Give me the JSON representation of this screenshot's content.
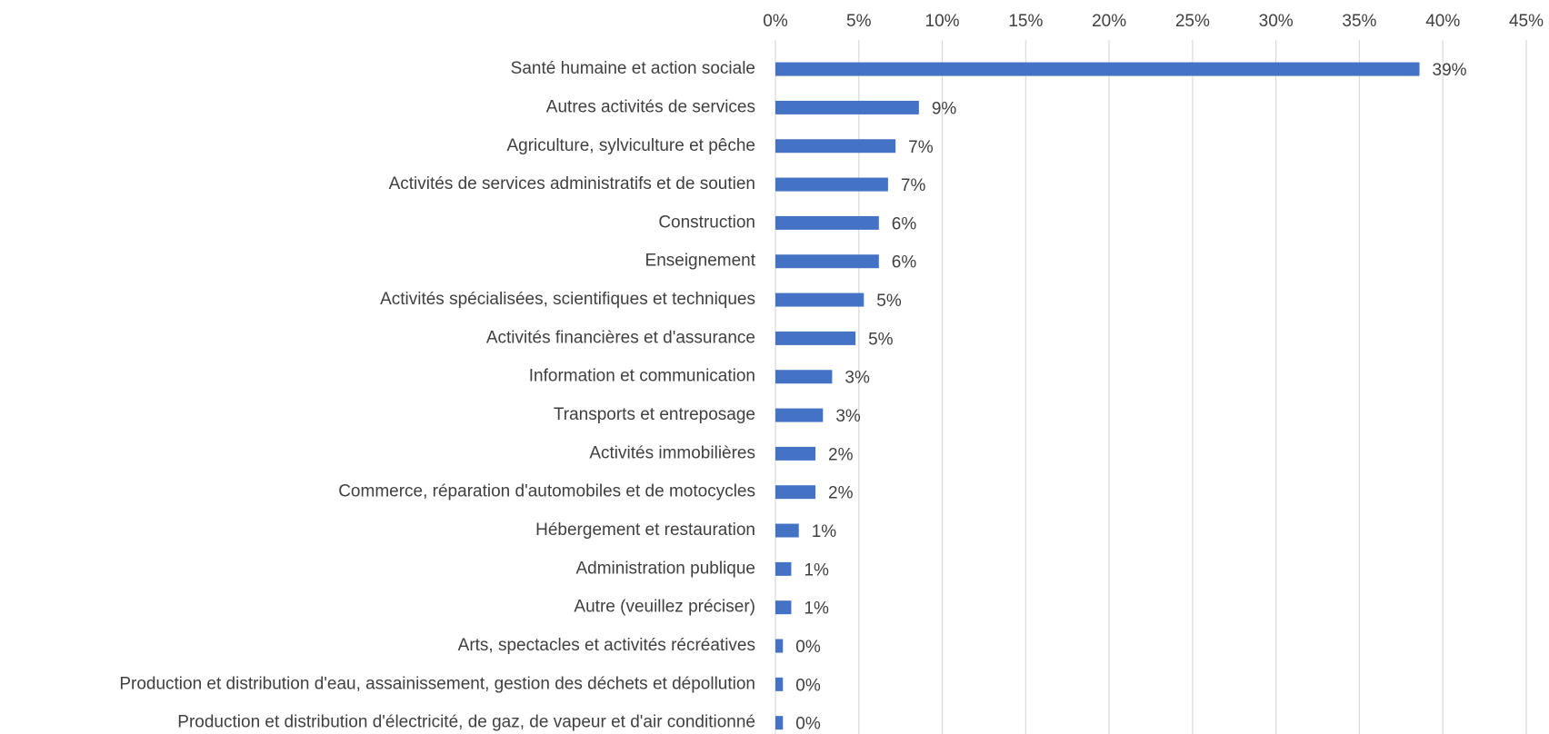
{
  "chart_data": {
    "type": "barh",
    "categories": [
      "Santé humaine et action sociale",
      "Autres activités de services",
      "Agriculture, sylviculture et pêche",
      "Activités de services administratifs et de soutien",
      "Construction",
      "Enseignement",
      "Activités spécialisées, scientifiques et techniques",
      "Activités financières et d'assurance",
      "Information et communication",
      "Transports et entreposage",
      "Activités immobilières",
      "Commerce, réparation d'automobiles et de motocycles",
      "Hébergement et restauration",
      "Administration publique",
      "Autre (veuillez préciser)",
      "Arts, spectacles et activités récréatives",
      "Production et distribution d'eau, assainissement, gestion des déchets et dépollution",
      "Production et distribution d'électricité, de gaz, de vapeur et d'air conditionné"
    ],
    "values": [
      38.6,
      8.6,
      7.2,
      6.75,
      6.2,
      6.2,
      5.3,
      4.8,
      3.4,
      2.85,
      2.4,
      2.4,
      1.4,
      0.95,
      0.95,
      0.45,
      0.45,
      0.45
    ],
    "value_labels": [
      "39%",
      "9%",
      "7%",
      "7%",
      "6%",
      "6%",
      "5%",
      "5%",
      "3%",
      "3%",
      "2%",
      "2%",
      "1%",
      "1%",
      "1%",
      "0%",
      "0%",
      "0%"
    ],
    "color": "#4472c4",
    "xlim": [
      0,
      45
    ],
    "xticks": [
      {
        "value": 0,
        "label": "0%"
      },
      {
        "value": 5,
        "label": "5%"
      },
      {
        "value": 10,
        "label": "10%"
      },
      {
        "value": 15,
        "label": "15%"
      },
      {
        "value": 20,
        "label": "20%"
      },
      {
        "value": 25,
        "label": "25%"
      },
      {
        "value": 30,
        "label": "30%"
      },
      {
        "value": 35,
        "label": "35%"
      },
      {
        "value": 40,
        "label": "40%"
      },
      {
        "value": 45,
        "label": "45%"
      }
    ],
    "grid": true
  }
}
